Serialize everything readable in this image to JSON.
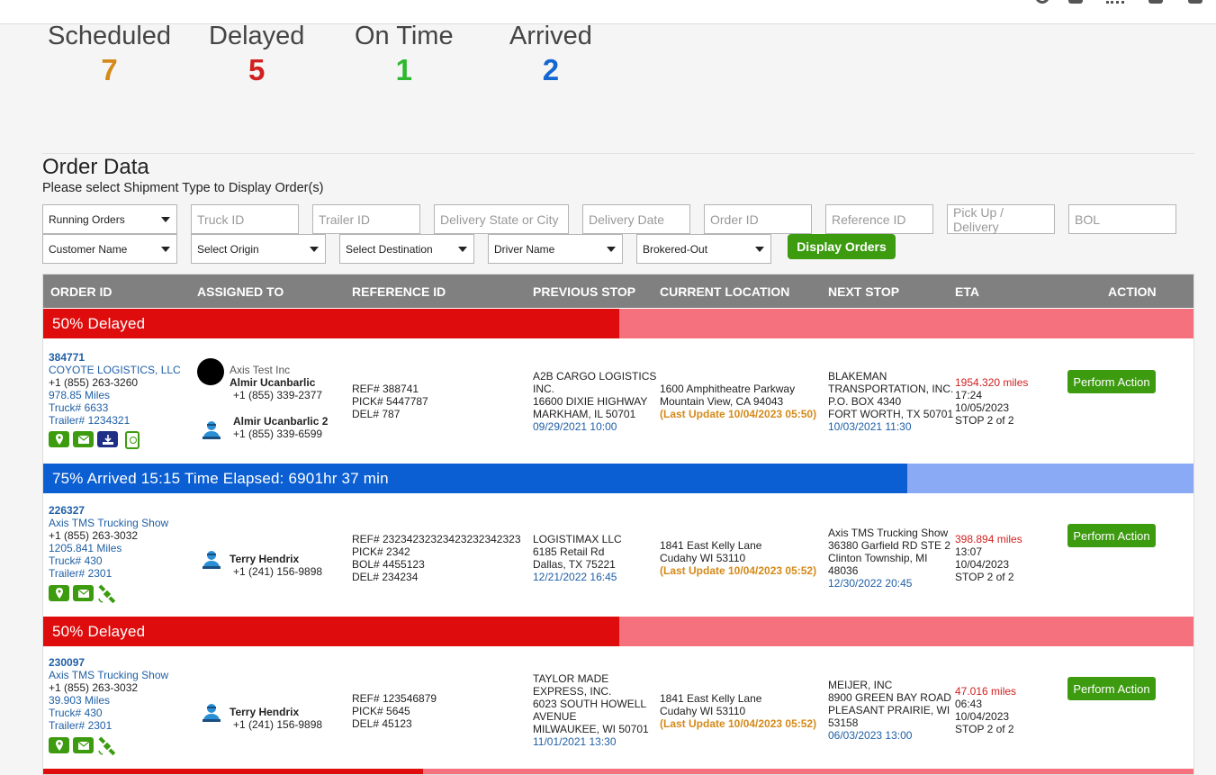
{
  "stats": [
    {
      "label": "Scheduled",
      "value": "7",
      "color": "#d48a1a"
    },
    {
      "label": "Delayed",
      "value": "5",
      "color": "#d21f1f"
    },
    {
      "label": "On Time",
      "value": "1",
      "color": "#2fb82f"
    },
    {
      "label": "Arrived",
      "value": "2",
      "color": "#1466d1"
    }
  ],
  "section": {
    "title": "Order Data",
    "subtitle": "Please select Shipment Type to Display Order(s)"
  },
  "filters": {
    "shipment_type": "Running Orders",
    "truck_id_ph": "Truck ID",
    "trailer_id_ph": "Trailer ID",
    "delivery_state_ph": "Delivery State or City",
    "delivery_date_ph": "Delivery Date",
    "order_id_ph": "Order ID",
    "reference_id_ph": "Reference ID",
    "pickup_delivery_ph": "Pick Up / Delivery",
    "bol_ph": "BOL",
    "customer": "Customer Name",
    "origin": "Select Origin",
    "destination": "Select Destination",
    "driver": "Driver Name",
    "brokered": "Brokered-Out",
    "display_button": "Display Orders"
  },
  "table": {
    "headers": [
      "ORDER ID",
      "ASSIGNED TO",
      "REFERENCE ID",
      "PREVIOUS STOP",
      "CURRENT LOCATION",
      "NEXT STOP",
      "ETA",
      "ACTION"
    ],
    "action_label": "Perform Action",
    "bands": [
      {
        "text": "50% Delayed",
        "progress": 0.5,
        "fill": "#de0c0c",
        "rest": "#f5717e"
      },
      {
        "text": "75% Arrived 15:15 Time Elapsed: 6901hr 37 min",
        "progress": 0.75,
        "fill": "#0b5fd2",
        "rest": "#8aaaf6"
      },
      {
        "text": "50% Delayed",
        "progress": 0.5,
        "fill": "#de0c0c",
        "rest": "#f5717e"
      },
      {
        "text": "",
        "progress": 0.33,
        "fill": "#de0c0c",
        "rest": "#f5717e"
      }
    ],
    "rows": [
      {
        "order_id": "384771",
        "customer": "COYOTE LOGISTICS, LLC",
        "phone": "+1 (855) 263-3260",
        "miles": "978.85 Miles",
        "truck": "Truck# 6633",
        "trailer": "Trailer# 1234321",
        "carrier": "Axis Test Inc",
        "driver": "Almir Ucanbarlic",
        "driver_phone": "+1 (855) 339-2377",
        "driver2": "Almir Ucanbarlic 2",
        "driver2_phone": "+1 (855) 339-6599",
        "refs": [
          "REF# 388741",
          "PICK# 5447787",
          "DEL# 787"
        ],
        "prev_stop": [
          "A2B CARGO LOGISTICS",
          "INC.",
          "16600 DIXIE HIGHWAY",
          "MARKHAM, IL 50701"
        ],
        "prev_time": "09/29/2021 10:00",
        "current": [
          "1600 Amphitheatre Parkway",
          "Mountain View, CA 94043"
        ],
        "last_update": "(Last Update 10/04/2023 05:50)",
        "next_stop": [
          "BLAKEMAN",
          "TRANSPORTATION, INC.",
          "P.O. BOX 4340",
          "FORT WORTH, TX 50701"
        ],
        "next_time": "10/03/2021 11:30",
        "eta_miles": "1954.320 miles",
        "eta_lines": [
          "17:24",
          "10/05/2023",
          "STOP 2 of 2"
        ]
      },
      {
        "order_id": "226327",
        "customer": "Axis TMS Trucking Show",
        "phone": "+1 (855) 263-3032",
        "miles": "1205.841 Miles",
        "truck": "Truck# 430",
        "trailer": "Trailer# 2301",
        "driver": "Terry Hendrix",
        "driver_phone": "+1 (241) 156-9898",
        "refs": [
          "REF# 23234232323423232342323",
          "PICK# 2342",
          "BOL# 4455123",
          "DEL# 234234"
        ],
        "prev_stop": [
          "LOGISTIMAX LLC",
          "6185 Retail Rd",
          "Dallas, TX 75221"
        ],
        "prev_time": "12/21/2022 16:45",
        "current": [
          "1841 East Kelly Lane",
          "Cudahy WI 53110"
        ],
        "last_update": "(Last Update 10/04/2023 05:52)",
        "next_stop": [
          "Axis TMS Trucking Show",
          "36380 Garfield RD STE 2",
          "Clinton Township, MI",
          "48036"
        ],
        "next_time": "12/30/2022 20:45",
        "eta_miles": "398.894 miles",
        "eta_lines": [
          "13:07",
          "10/04/2023",
          "STOP 2 of 2"
        ]
      },
      {
        "order_id": "230097",
        "customer": "Axis TMS Trucking Show",
        "phone": "+1 (855) 263-3032",
        "miles": "39.903 Miles",
        "truck": "Truck# 430",
        "trailer": "Trailer# 2301",
        "driver": "Terry Hendrix",
        "driver_phone": "+1 (241) 156-9898",
        "refs": [
          "REF# 123546879",
          "PICK# 5645",
          "DEL# 45123"
        ],
        "prev_stop": [
          "TAYLOR MADE",
          "EXPRESS, INC.",
          "6023 SOUTH HOWELL",
          "AVENUE",
          "MILWAUKEE, WI 50701"
        ],
        "prev_time": "11/01/2021 13:30",
        "current": [
          "1841 East Kelly Lane",
          "Cudahy WI 53110"
        ],
        "last_update": "(Last Update 10/04/2023 05:52)",
        "next_stop": [
          "MEIJER, INC",
          "8900 GREEN BAY ROAD",
          "PLEASANT PRAIRIE, WI",
          "53158"
        ],
        "next_time": "06/03/2023 13:00",
        "eta_miles": "47.016 miles",
        "eta_lines": [
          "06:43",
          "10/04/2023",
          "STOP 2 of 2"
        ]
      }
    ]
  }
}
